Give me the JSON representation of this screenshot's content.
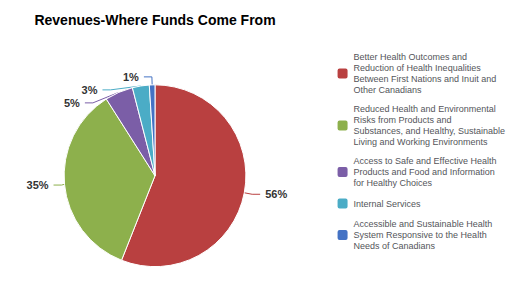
{
  "chart_data": {
    "type": "pie",
    "title": "Revenues-Where Funds Come From",
    "categories": [
      "Better Health Outcomes and\nReduction of Health Inequalities\nBetween First Nations and Inuit and\nOther Canadians",
      "Reduced Health and Environmental\nRisks from Products and\nSubstances, and Healthy, Sustainable\nLiving and Working Environments",
      "Access to Safe and Effective Health\nProducts and Food and Information\nfor Healthy Choices",
      "Internal Services",
      "Accessible and Sustainable Health\nSystem Responsive to the Health\nNeeds of Canadians"
    ],
    "values": [
      56,
      35,
      5,
      3,
      1
    ],
    "value_labels": [
      "56%",
      "35%",
      "5%",
      "3%",
      "1%"
    ],
    "colors": [
      "#b94040",
      "#8db04c",
      "#7b5ea7",
      "#4bacc6",
      "#4472c4"
    ],
    "data_labels": true,
    "legend": "right"
  }
}
